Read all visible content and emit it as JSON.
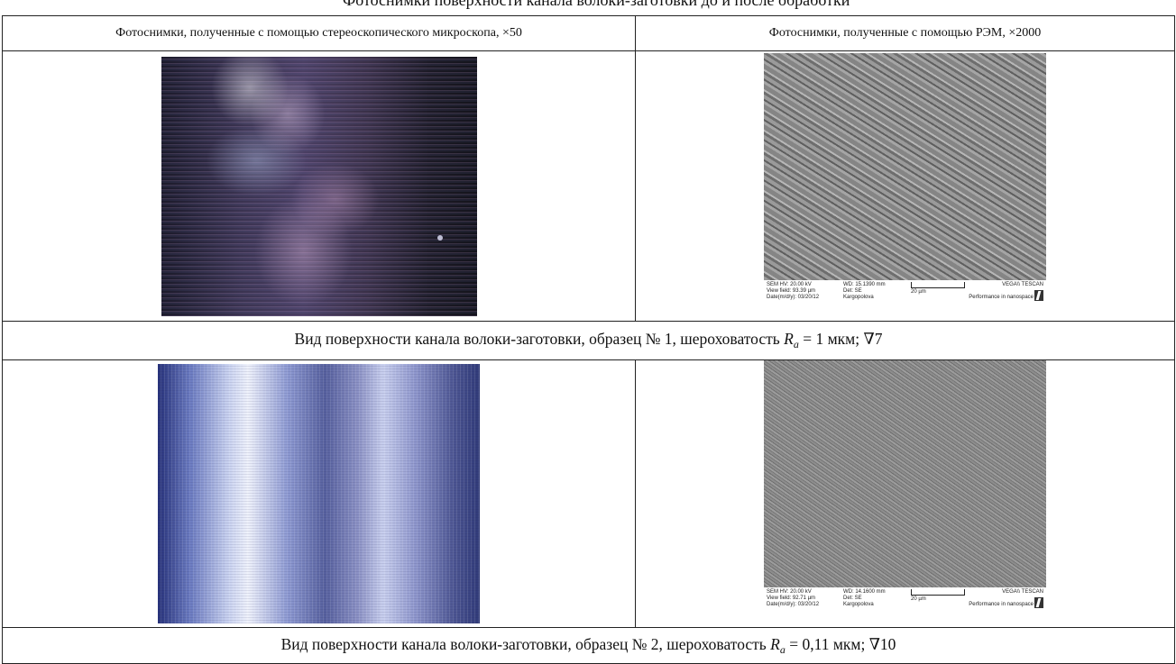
{
  "top_caption": "Фотоснимки поверхности канала волоки-заготовки до и после обработки",
  "header": {
    "left": "Фотоснимки, полученные с помощью стереоскопического микроскопа, ×50",
    "right": "Фотоснимки, полученные с помощью РЭМ, ×2000"
  },
  "samples": [
    {
      "caption_before": "Вид поверхности канала волоки-заготовки, образец № 1, шероховатость ",
      "caption_symbol": "R",
      "caption_subscript": "a",
      "caption_after": " = 1 мкм; ∇7",
      "sem": {
        "line1a": "SEM HV: 20.00 kV",
        "line2a": "View field: 93.39 µm",
        "line3a": "Date(m/d/y): 03/20/12",
        "line1b": "WD: 15.1390 mm",
        "line2b": "Det: SE",
        "line3b": "Kargopolova",
        "scale": "20 µm",
        "vendor": "VEGA\\\\ TESCAN",
        "slogan": "Performance in nanospace"
      }
    },
    {
      "caption_before": "Вид поверхности канала волоки-заготовки, образец № 2, шероховатость ",
      "caption_symbol": "R",
      "caption_subscript": "a",
      "caption_after": " = 0,11 мкм; ∇10",
      "sem": {
        "line1a": "SEM HV: 20.00 kV",
        "line2a": "View field: 92.71 µm",
        "line3a": "Date(m/d/y): 03/20/12",
        "line1b": "WD: 14.1600 mm",
        "line2b": "Det: SE",
        "line3b": "Kargopolova",
        "scale": "20 µm",
        "vendor": "VEGA\\\\ TESCAN",
        "slogan": "Performance in nanospace"
      }
    }
  ]
}
